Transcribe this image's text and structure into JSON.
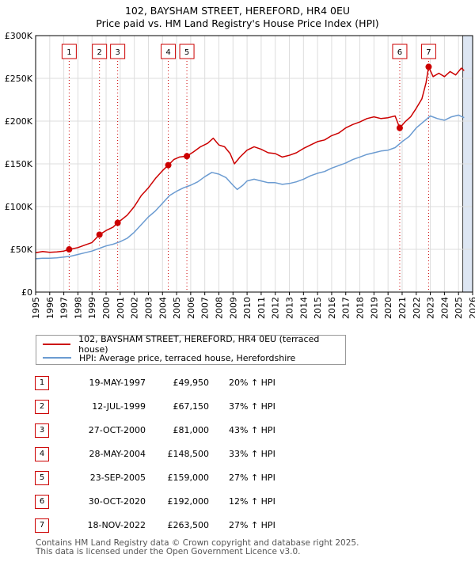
{
  "title": "102, BAYSHAM STREET, HEREFORD, HR4 0EU",
  "subtitle": "Price paid vs. HM Land Registry's House Price Index (HPI)",
  "colors": {
    "property": "#cc0000",
    "hpi": "#6b9bd1",
    "grid": "#dddddd",
    "shade": "#dde6f3"
  },
  "legend": {
    "property": "102, BAYSHAM STREET, HEREFORD, HR4 0EU (terraced house)",
    "hpi": "HPI: Average price, terraced house, Herefordshire"
  },
  "sales": [
    {
      "num": "1",
      "date": "19-MAY-1997",
      "price": "£49,950",
      "hpi": "20% ↑ HPI"
    },
    {
      "num": "2",
      "date": "12-JUL-1999",
      "price": "£67,150",
      "hpi": "37% ↑ HPI"
    },
    {
      "num": "3",
      "date": "27-OCT-2000",
      "price": "£81,000",
      "hpi": "43% ↑ HPI"
    },
    {
      "num": "4",
      "date": "28-MAY-2004",
      "price": "£148,500",
      "hpi": "33% ↑ HPI"
    },
    {
      "num": "5",
      "date": "23-SEP-2005",
      "price": "£159,000",
      "hpi": "27% ↑ HPI"
    },
    {
      "num": "6",
      "date": "30-OCT-2020",
      "price": "£192,000",
      "hpi": "12% ↑ HPI"
    },
    {
      "num": "7",
      "date": "18-NOV-2022",
      "price": "£263,500",
      "hpi": "27% ↑ HPI"
    }
  ],
  "footer": {
    "line1": "Contains HM Land Registry data © Crown copyright and database right 2025.",
    "line2": "This data is licensed under the Open Government Licence v3.0."
  },
  "chart_data": {
    "type": "line",
    "xlim": [
      1995,
      2026
    ],
    "ylim": [
      0,
      300000
    ],
    "y_ticks": [
      {
        "value": 0,
        "label": "£0"
      },
      {
        "value": 50000,
        "label": "£50K"
      },
      {
        "value": 100000,
        "label": "£100K"
      },
      {
        "value": 150000,
        "label": "£150K"
      },
      {
        "value": 200000,
        "label": "£200K"
      },
      {
        "value": 250000,
        "label": "£250K"
      },
      {
        "value": 300000,
        "label": "£300K"
      }
    ],
    "x_ticks": [
      "1995",
      "1996",
      "1997",
      "1998",
      "1999",
      "2000",
      "2001",
      "2002",
      "2003",
      "2004",
      "2005",
      "2006",
      "2007",
      "2008",
      "2009",
      "2010",
      "2011",
      "2012",
      "2013",
      "2014",
      "2015",
      "2016",
      "2017",
      "2018",
      "2019",
      "2020",
      "2021",
      "2022",
      "2023",
      "2024",
      "2025",
      "2026"
    ],
    "shade_from_year": 2025.3,
    "sale_points": [
      {
        "label": "1",
        "x": 1997.38,
        "y": 49950
      },
      {
        "label": "2",
        "x": 1999.53,
        "y": 67150
      },
      {
        "label": "3",
        "x": 2000.82,
        "y": 81000
      },
      {
        "label": "4",
        "x": 2004.41,
        "y": 148500
      },
      {
        "label": "5",
        "x": 2005.73,
        "y": 159000
      },
      {
        "label": "6",
        "x": 2020.83,
        "y": 192000
      },
      {
        "label": "7",
        "x": 2022.88,
        "y": 263500
      }
    ],
    "series": [
      {
        "name": "102, BAYSHAM STREET, HEREFORD, HR4 0EU (terraced house)",
        "points": [
          [
            1995.0,
            46000
          ],
          [
            1995.5,
            47500
          ],
          [
            1996.0,
            46500
          ],
          [
            1996.5,
            47000
          ],
          [
            1997.0,
            48000
          ],
          [
            1997.38,
            49950
          ],
          [
            1998.0,
            52000
          ],
          [
            1998.5,
            55000
          ],
          [
            1999.0,
            58000
          ],
          [
            1999.53,
            67150
          ],
          [
            2000.0,
            72000
          ],
          [
            2000.5,
            76000
          ],
          [
            2000.82,
            81000
          ],
          [
            2001.5,
            90000
          ],
          [
            2002.0,
            100000
          ],
          [
            2002.5,
            113000
          ],
          [
            2003.0,
            122000
          ],
          [
            2003.5,
            133000
          ],
          [
            2004.0,
            142000
          ],
          [
            2004.41,
            148500
          ],
          [
            2004.8,
            155000
          ],
          [
            2005.2,
            158000
          ],
          [
            2005.73,
            159000
          ],
          [
            2006.2,
            164000
          ],
          [
            2006.7,
            170000
          ],
          [
            2007.2,
            174000
          ],
          [
            2007.6,
            180000
          ],
          [
            2008.0,
            172000
          ],
          [
            2008.4,
            170000
          ],
          [
            2008.8,
            162000
          ],
          [
            2009.1,
            150000
          ],
          [
            2009.5,
            158000
          ],
          [
            2010.0,
            166000
          ],
          [
            2010.5,
            170000
          ],
          [
            2011.0,
            167000
          ],
          [
            2011.5,
            163000
          ],
          [
            2012.0,
            162000
          ],
          [
            2012.5,
            158000
          ],
          [
            2013.0,
            160000
          ],
          [
            2013.5,
            163000
          ],
          [
            2014.0,
            168000
          ],
          [
            2014.5,
            172000
          ],
          [
            2015.0,
            176000
          ],
          [
            2015.5,
            178000
          ],
          [
            2016.0,
            183000
          ],
          [
            2016.5,
            186000
          ],
          [
            2017.0,
            192000
          ],
          [
            2017.5,
            196000
          ],
          [
            2018.0,
            199000
          ],
          [
            2018.5,
            203000
          ],
          [
            2019.0,
            205000
          ],
          [
            2019.5,
            203000
          ],
          [
            2020.0,
            204000
          ],
          [
            2020.5,
            206000
          ],
          [
            2020.83,
            192000
          ],
          [
            2021.2,
            199000
          ],
          [
            2021.6,
            205000
          ],
          [
            2022.0,
            215000
          ],
          [
            2022.4,
            226000
          ],
          [
            2022.7,
            245000
          ],
          [
            2022.88,
            263500
          ],
          [
            2023.2,
            252000
          ],
          [
            2023.6,
            256000
          ],
          [
            2024.0,
            252000
          ],
          [
            2024.4,
            258000
          ],
          [
            2024.8,
            254000
          ],
          [
            2025.2,
            262000
          ],
          [
            2025.4,
            259000
          ]
        ]
      },
      {
        "name": "HPI: Average price, terraced house, Herefordshire",
        "points": [
          [
            1995.0,
            39000
          ],
          [
            1995.5,
            39500
          ],
          [
            1996.0,
            39500
          ],
          [
            1996.5,
            40000
          ],
          [
            1997.0,
            41000
          ],
          [
            1997.5,
            42000
          ],
          [
            1998.0,
            44000
          ],
          [
            1998.5,
            46000
          ],
          [
            1999.0,
            48000
          ],
          [
            1999.5,
            51000
          ],
          [
            2000.0,
            54000
          ],
          [
            2000.5,
            56000
          ],
          [
            2001.0,
            59000
          ],
          [
            2001.5,
            63000
          ],
          [
            2002.0,
            70000
          ],
          [
            2002.5,
            79000
          ],
          [
            2003.0,
            88000
          ],
          [
            2003.5,
            95000
          ],
          [
            2004.0,
            104000
          ],
          [
            2004.5,
            113000
          ],
          [
            2005.0,
            118000
          ],
          [
            2005.5,
            122000
          ],
          [
            2006.0,
            125000
          ],
          [
            2006.5,
            129000
          ],
          [
            2007.0,
            135000
          ],
          [
            2007.5,
            140000
          ],
          [
            2008.0,
            138000
          ],
          [
            2008.5,
            134000
          ],
          [
            2009.0,
            125000
          ],
          [
            2009.3,
            120000
          ],
          [
            2009.7,
            125000
          ],
          [
            2010.0,
            130000
          ],
          [
            2010.5,
            132000
          ],
          [
            2011.0,
            130000
          ],
          [
            2011.5,
            128000
          ],
          [
            2012.0,
            128000
          ],
          [
            2012.5,
            126000
          ],
          [
            2013.0,
            127000
          ],
          [
            2013.5,
            129000
          ],
          [
            2014.0,
            132000
          ],
          [
            2014.5,
            136000
          ],
          [
            2015.0,
            139000
          ],
          [
            2015.5,
            141000
          ],
          [
            2016.0,
            145000
          ],
          [
            2016.5,
            148000
          ],
          [
            2017.0,
            151000
          ],
          [
            2017.5,
            155000
          ],
          [
            2018.0,
            158000
          ],
          [
            2018.5,
            161000
          ],
          [
            2019.0,
            163000
          ],
          [
            2019.5,
            165000
          ],
          [
            2020.0,
            166000
          ],
          [
            2020.5,
            169000
          ],
          [
            2021.0,
            176000
          ],
          [
            2021.5,
            182000
          ],
          [
            2022.0,
            192000
          ],
          [
            2022.5,
            199000
          ],
          [
            2023.0,
            206000
          ],
          [
            2023.5,
            203000
          ],
          [
            2024.0,
            201000
          ],
          [
            2024.5,
            205000
          ],
          [
            2025.0,
            207000
          ],
          [
            2025.4,
            204000
          ]
        ]
      }
    ]
  }
}
